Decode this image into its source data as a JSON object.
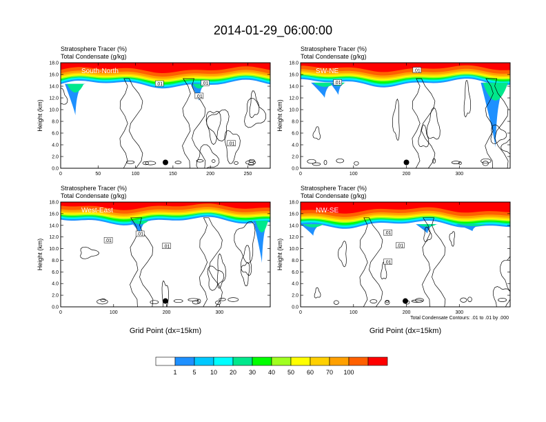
{
  "title": "2014-01-29_06:00:00",
  "footnote": "Total Condensate Contours: .01 to .01 by .000",
  "colorbar": {
    "colors": [
      "#ffffff",
      "#1e90ff",
      "#00c8ff",
      "#00ffff",
      "#00e88c",
      "#00ff00",
      "#a0ff20",
      "#ffff00",
      "#ffd000",
      "#ffa000",
      "#ff6000",
      "#ff0000"
    ],
    "labels": [
      "1",
      "5",
      "10",
      "20",
      "30",
      "40",
      "50",
      "60",
      "70",
      "100"
    ]
  },
  "chart_data": [
    {
      "type": "heatmap",
      "header_line1": "Stratosphere Tracer   (%)",
      "header_line2": "Total Condensate   (g/kg)",
      "panel_label": "South-North",
      "xlabel": "",
      "ylabel": "Height (km)",
      "xlim": [
        0,
        280
      ],
      "ylim": [
        0,
        18
      ],
      "xticks": [
        "0",
        "50",
        "100",
        "150",
        "200",
        "250"
      ],
      "xtick_values": [
        0,
        50,
        100,
        150,
        200,
        250
      ],
      "yticks": [
        "0.0",
        "2.0",
        "4.0",
        "6.0",
        "8.0",
        "10.0",
        "12.0",
        "14.0",
        "16.0",
        "18.0"
      ],
      "marker": {
        "x": 140,
        "y": 1.0
      },
      "tracer_base_km": 14.6,
      "contour_labels": [
        {
          "text": ".01",
          "x": 132,
          "y": 14.4
        },
        {
          "text": ".01",
          "x": 193,
          "y": 14.5
        },
        {
          "text": ".01",
          "x": 185,
          "y": 12.3
        },
        {
          "text": ".01",
          "x": 228,
          "y": 4.2
        }
      ]
    },
    {
      "type": "heatmap",
      "header_line1": "Stratosphere Tracer   (%)",
      "header_line2": "Total Condensate   (g/kg)",
      "panel_label": "SW-NE",
      "xlabel": "",
      "ylabel": "Height (km)",
      "xlim": [
        0,
        396
      ],
      "ylim": [
        0,
        18
      ],
      "xticks": [
        "0",
        "100",
        "200",
        "300"
      ],
      "xtick_values": [
        0,
        100,
        200,
        300
      ],
      "yticks": [
        "0.0",
        "2.0",
        "4.0",
        "6.0",
        "8.0",
        "10.0",
        "12.0",
        "14.0",
        "16.0",
        "18.0"
      ],
      "marker": {
        "x": 200,
        "y": 1.0
      },
      "tracer_base_km": 14.8,
      "contour_labels": [
        {
          "text": ".01",
          "x": 70,
          "y": 14.6
        },
        {
          "text": ".01",
          "x": 220,
          "y": 16.7
        }
      ]
    },
    {
      "type": "heatmap",
      "header_line1": "Stratosphere Tracer   (%)",
      "header_line2": "Total Condensate   (g/kg)",
      "panel_label": "West-East",
      "xlabel": "Grid Point (dx=15km)",
      "ylabel": "Height (km)",
      "xlim": [
        0,
        396
      ],
      "ylim": [
        0,
        18
      ],
      "xticks": [
        "0",
        "100",
        "200",
        "300"
      ],
      "xtick_values": [
        0,
        100,
        200,
        300
      ],
      "yticks": [
        "0.0",
        "2.0",
        "4.0",
        "6.0",
        "8.0",
        "10.0",
        "12.0",
        "14.0",
        "16.0",
        "18.0"
      ],
      "marker": {
        "x": 198,
        "y": 1.0
      },
      "tracer_base_km": 15.0,
      "contour_labels": [
        {
          "text": ".01",
          "x": 150,
          "y": 12.5
        },
        {
          "text": ".01",
          "x": 90,
          "y": 11.4
        },
        {
          "text": ".01",
          "x": 200,
          "y": 10.4
        }
      ]
    },
    {
      "type": "heatmap",
      "header_line1": "Stratosphere Tracer   (%)",
      "header_line2": "Total Condensate   (g/kg)",
      "panel_label": "NW-SE",
      "xlabel": "Grid Point (dx=15km)",
      "ylabel": "Height (km)",
      "xlim": [
        0,
        396
      ],
      "ylim": [
        0,
        18
      ],
      "xticks": [
        "0",
        "100",
        "200",
        "300"
      ],
      "xtick_values": [
        0,
        100,
        200,
        300
      ],
      "yticks": [
        "0.0",
        "2.0",
        "4.0",
        "6.0",
        "8.0",
        "10.0",
        "12.0",
        "14.0",
        "16.0",
        "18.0"
      ],
      "marker": {
        "x": 198,
        "y": 1.0
      },
      "tracer_base_km": 14.4,
      "contour_labels": [
        {
          "text": ".01",
          "x": 165,
          "y": 12.7
        },
        {
          "text": ".01",
          "x": 188,
          "y": 10.5
        },
        {
          "text": ".01",
          "x": 165,
          "y": 7.7
        }
      ]
    }
  ]
}
